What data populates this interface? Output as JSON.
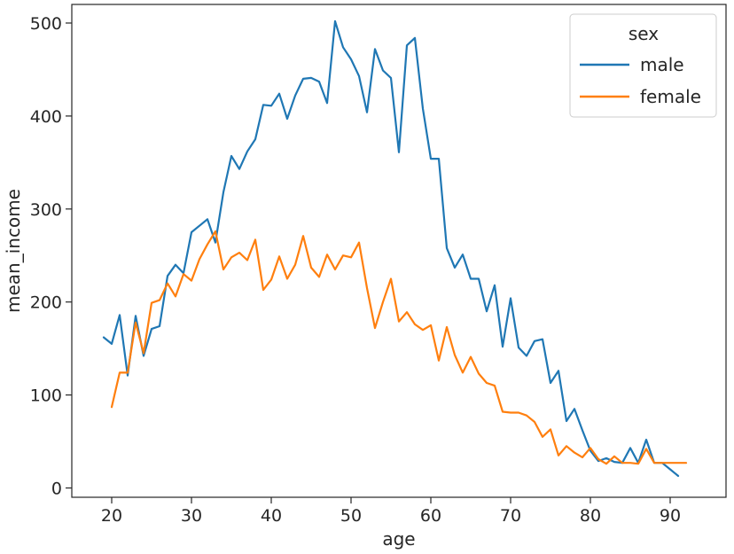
{
  "chart_data": {
    "type": "line",
    "title": "",
    "xlabel": "age",
    "ylabel": "mean_income",
    "xlim": [
      15,
      97
    ],
    "ylim": [
      -10,
      520
    ],
    "xticks": [
      20,
      30,
      40,
      50,
      60,
      70,
      80,
      90
    ],
    "yticks": [
      0,
      100,
      200,
      300,
      400,
      500
    ],
    "grid": false,
    "legend": {
      "title": "sex",
      "position": "top-right"
    },
    "series": [
      {
        "name": "male",
        "color": "#1f77b4",
        "x": [
          19,
          20,
          21,
          22,
          23,
          24,
          25,
          26,
          27,
          28,
          29,
          30,
          31,
          32,
          33,
          34,
          35,
          36,
          37,
          38,
          39,
          40,
          41,
          42,
          43,
          44,
          45,
          46,
          47,
          48,
          49,
          50,
          51,
          52,
          53,
          54,
          55,
          56,
          57,
          58,
          59,
          60,
          61,
          62,
          63,
          64,
          65,
          66,
          67,
          68,
          69,
          70,
          71,
          72,
          73,
          74,
          75,
          76,
          77,
          78,
          79,
          80,
          81,
          82,
          83,
          84,
          85,
          86,
          87,
          88,
          89,
          90,
          91
        ],
        "y": [
          162,
          155,
          186,
          121,
          185,
          142,
          171,
          174,
          228,
          240,
          231,
          275,
          282,
          289,
          264,
          318,
          357,
          343,
          362,
          375,
          412,
          411,
          424,
          397,
          422,
          440,
          441,
          437,
          414,
          502,
          474,
          461,
          443,
          404,
          472,
          449,
          441,
          361,
          476,
          484,
          408,
          354,
          354,
          258,
          237,
          251,
          225,
          225,
          190,
          218,
          152,
          204,
          151,
          142,
          158,
          160,
          113,
          126,
          72,
          85,
          62,
          40,
          29,
          32,
          28,
          27,
          43,
          27,
          52,
          27,
          27,
          20,
          13
        ]
      },
      {
        "name": "female",
        "color": "#ff7f0e",
        "x": [
          20,
          21,
          22,
          23,
          24,
          25,
          26,
          27,
          28,
          29,
          30,
          31,
          32,
          33,
          34,
          35,
          36,
          37,
          38,
          39,
          40,
          41,
          42,
          43,
          44,
          45,
          46,
          47,
          48,
          49,
          50,
          51,
          52,
          53,
          54,
          55,
          56,
          57,
          58,
          59,
          60,
          61,
          62,
          63,
          64,
          65,
          66,
          67,
          68,
          69,
          70,
          71,
          72,
          73,
          74,
          75,
          76,
          77,
          78,
          79,
          80,
          81,
          82,
          83,
          84,
          85,
          86,
          87,
          88,
          89,
          90,
          91,
          92
        ],
        "y": [
          87,
          124,
          124,
          178,
          145,
          199,
          202,
          220,
          206,
          230,
          223,
          246,
          262,
          276,
          235,
          248,
          253,
          245,
          267,
          213,
          224,
          249,
          225,
          240,
          271,
          237,
          227,
          251,
          235,
          250,
          248,
          264,
          215,
          172,
          200,
          225,
          179,
          189,
          176,
          170,
          175,
          137,
          173,
          143,
          124,
          141,
          123,
          113,
          110,
          82,
          81,
          81,
          78,
          71,
          55,
          63,
          35,
          45,
          38,
          33,
          43,
          31,
          26,
          34,
          27,
          27,
          26,
          42,
          27,
          27,
          27,
          27,
          27
        ]
      }
    ]
  }
}
